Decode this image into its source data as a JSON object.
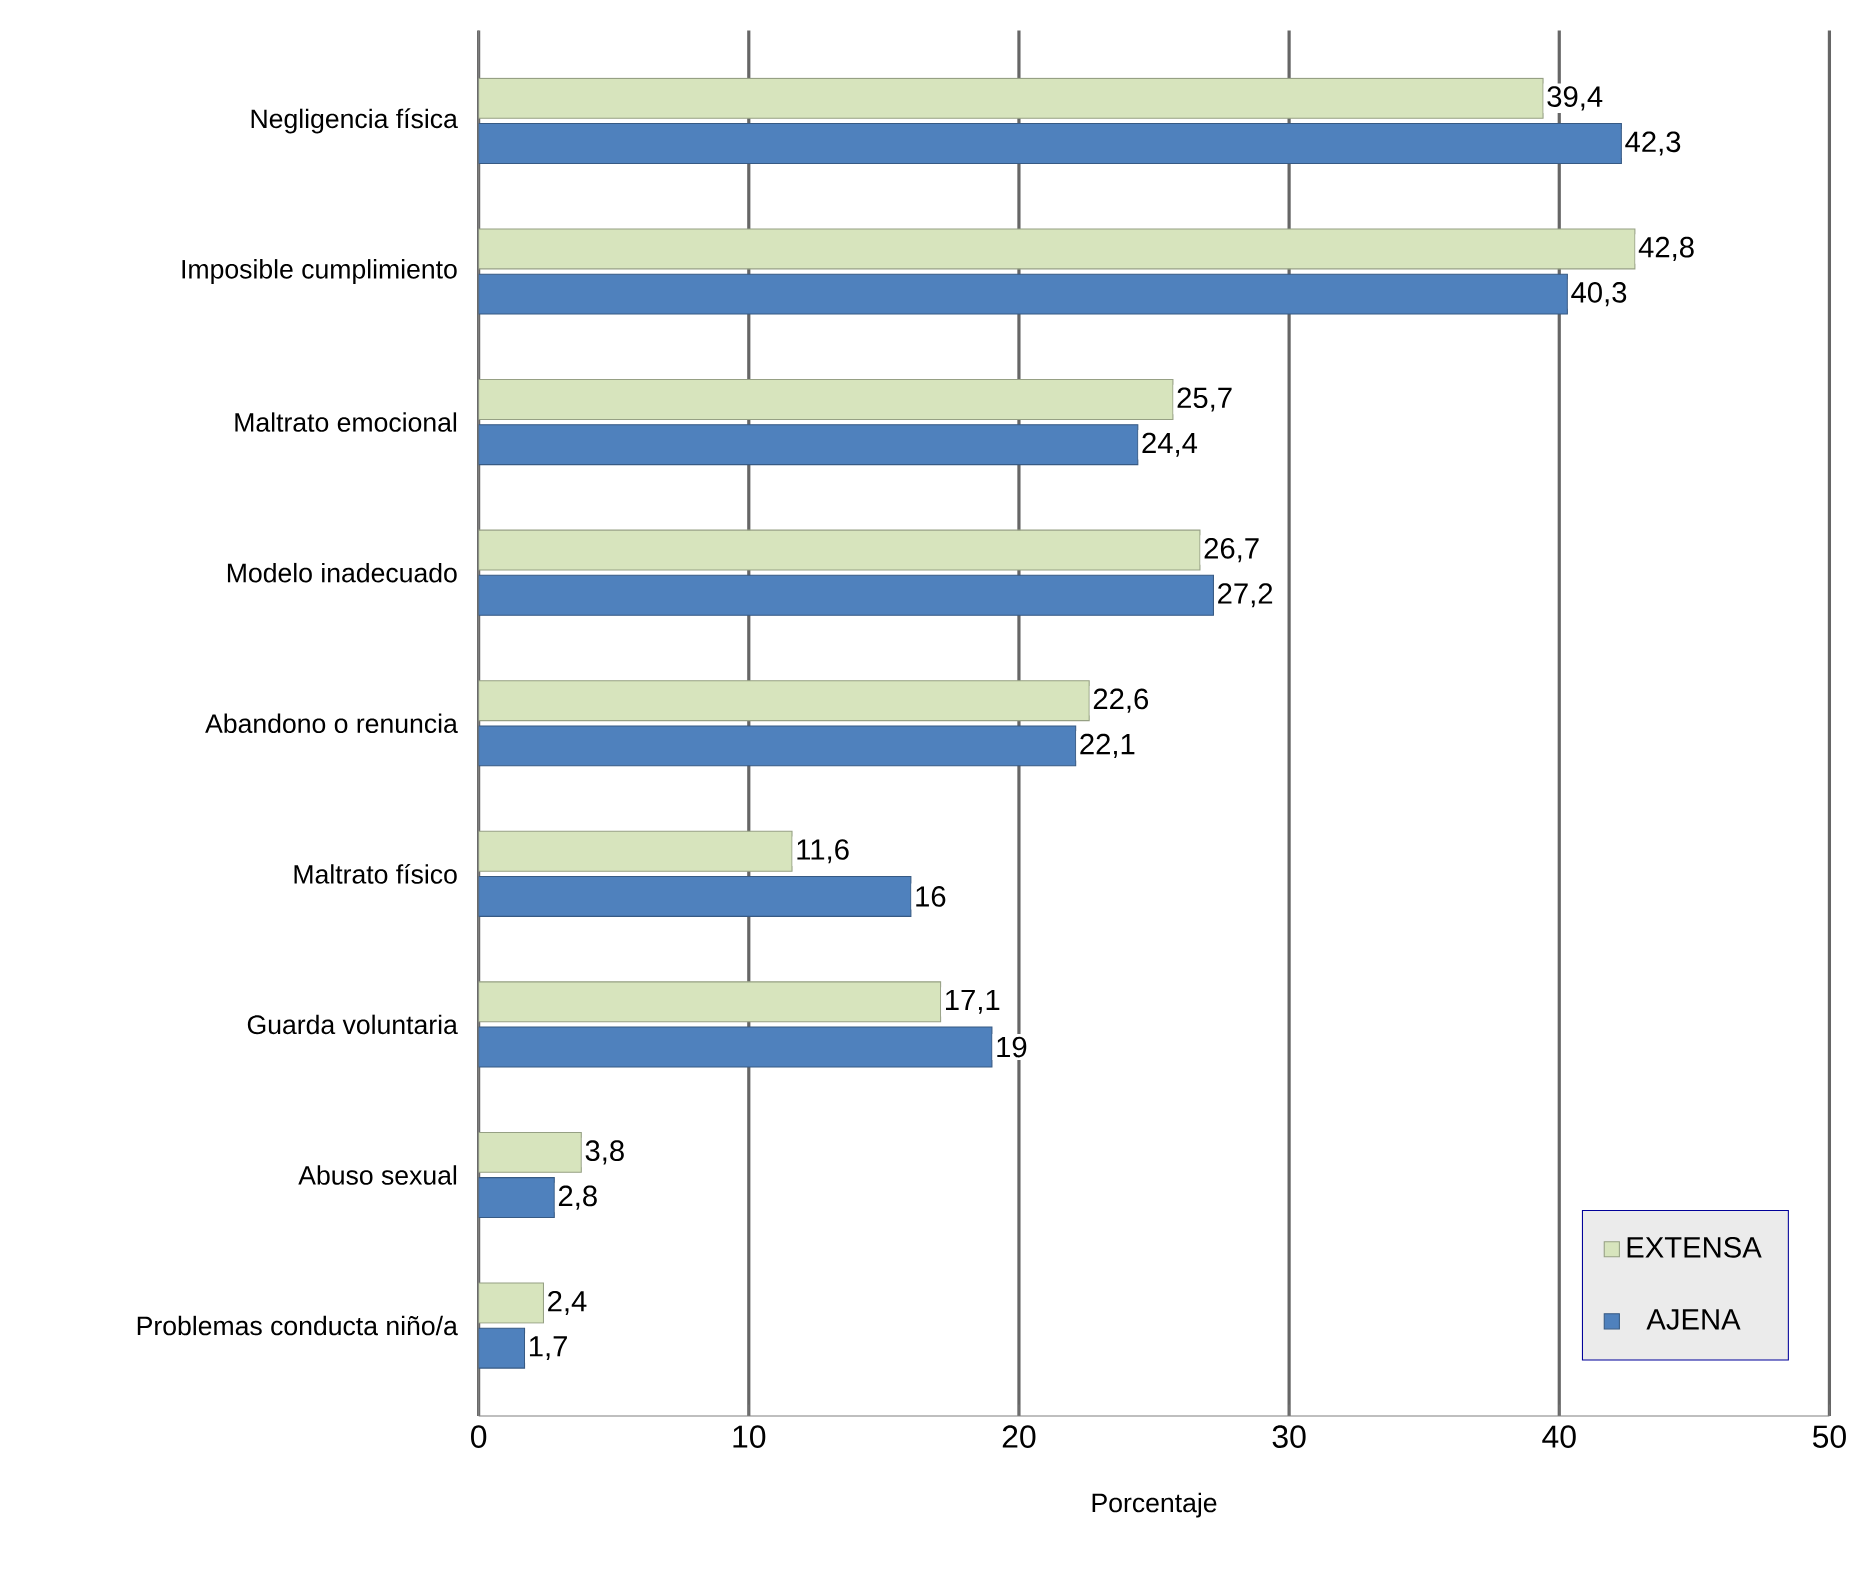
{
  "chart_data": {
    "type": "bar",
    "orientation": "horizontal",
    "xlabel": "Porcentaje",
    "categories": [
      "Negligencia física",
      "Imposible cumplimiento",
      "Maltrato emocional",
      "Modelo inadecuado",
      "Abandono o renuncia",
      "Maltrato físico",
      "Guarda voluntaria",
      "Abuso sexual",
      "Problemas conducta niño/a"
    ],
    "series": [
      {
        "name": "EXTENSA",
        "color": "#d7e4bd",
        "values": [
          39.4,
          42.8,
          25.7,
          26.7,
          22.6,
          11.6,
          17.1,
          3.8,
          2.4
        ],
        "value_labels": [
          "39,4",
          "42,8",
          "25,7",
          "26,7",
          "22,6",
          "11,6",
          "17,1",
          "3,8",
          "2,4"
        ]
      },
      {
        "name": "AJENA",
        "color": "#4f81bd",
        "values": [
          42.3,
          40.3,
          24.4,
          27.2,
          22.1,
          16,
          19,
          2.8,
          1.7
        ],
        "value_labels": [
          "42,3",
          "40,3",
          "24,4",
          "27,2",
          "22,1",
          "16",
          "19",
          "2,8",
          "1,7"
        ]
      }
    ],
    "xlim": [
      0,
      50
    ],
    "xticks": [
      0,
      10,
      20,
      30,
      40,
      50
    ],
    "grid": "x",
    "legend": "bottom right"
  }
}
